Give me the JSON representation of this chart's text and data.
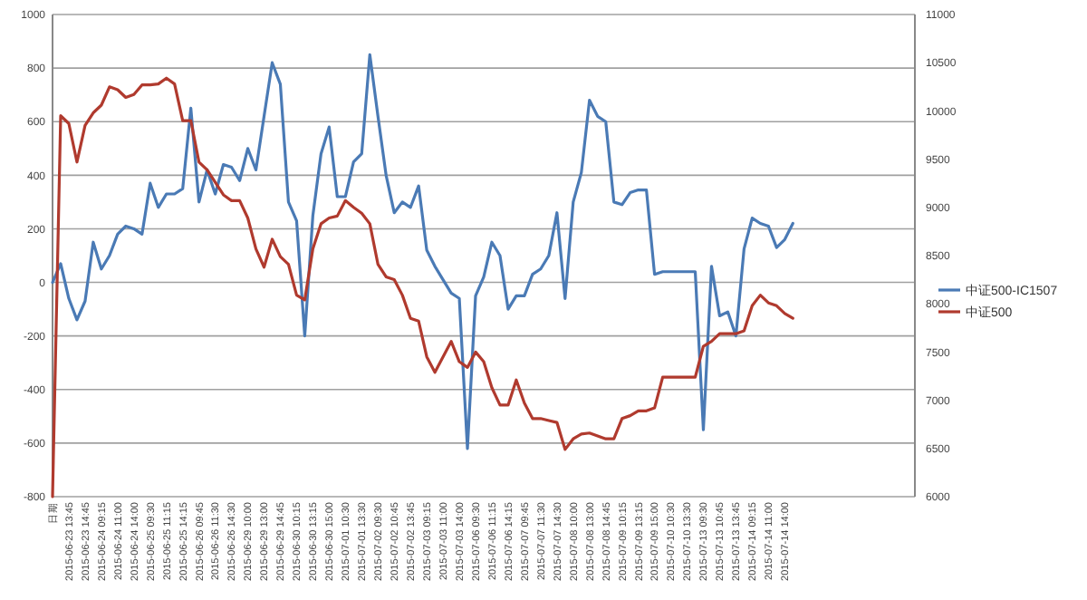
{
  "chart_data": {
    "type": "line",
    "categories": [
      "日期",
      null,
      "2015-06-23 13:45",
      null,
      "2015-06-23 14:45",
      null,
      "2015-06-24 09:15",
      null,
      "2015-06-24 11:00",
      null,
      "2015-06-24 14:00",
      null,
      "2015-06-25 09:30",
      null,
      "2015-06-25 11:15",
      null,
      "2015-06-25 14:15",
      null,
      "2015-06-26 09:45",
      null,
      "2015-06-26 11:30",
      null,
      "2015-06-26 14:30",
      null,
      "2015-06-29 10:00",
      null,
      "2015-06-29 13:00",
      null,
      "2015-06-29 14:45",
      null,
      "2015-06-30 10:15",
      null,
      "2015-06-30 13:15",
      null,
      "2015-06-30 15:00",
      null,
      "2015-07-01 10:30",
      null,
      "2015-07-01 13:30",
      null,
      "2015-07-02 09:30",
      null,
      "2015-07-02 10:45",
      null,
      "2015-07-02 13:45",
      null,
      "2015-07-03 09:15",
      null,
      "2015-07-03 11:00",
      null,
      "2015-07-03 14:00",
      null,
      "2015-07-06 09:30",
      null,
      "2015-07-06 11:15",
      null,
      "2015-07-06 14:15",
      null,
      "2015-07-07 09:45",
      null,
      "2015-07-07 11:30",
      null,
      "2015-07-07 14:30",
      null,
      "2015-07-08 10:00",
      null,
      "2015-07-08 13:00",
      null,
      "2015-07-08 14:45",
      null,
      "2015-07-09 10:15",
      null,
      "2015-07-09 13:15",
      null,
      "2015-07-09 15:00",
      null,
      "2015-07-10 10:30",
      null,
      "2015-07-10 13:30",
      null,
      "2015-07-13 09:30",
      null,
      "2015-07-13 10:45",
      null,
      "2015-07-13 13:45",
      null,
      "2015-07-14 09:15",
      null,
      "2015-07-14 11:00",
      null,
      "2015-07-14 14:00",
      null,
      null,
      null,
      null,
      null,
      null,
      null,
      null,
      null,
      null,
      null,
      null,
      null,
      null,
      null,
      null
    ],
    "series": [
      {
        "name": "中证500-IC1507",
        "color": "#4a7ab5",
        "values": [
          0,
          70,
          -60,
          -140,
          -70,
          150,
          50,
          100,
          180,
          210,
          200,
          180,
          370,
          280,
          330,
          330,
          350,
          650,
          300,
          420,
          330,
          440,
          430,
          380,
          500,
          420,
          620,
          820,
          740,
          300,
          230,
          -200,
          250,
          480,
          580,
          320,
          320,
          450,
          480,
          850,
          620,
          400,
          260,
          300,
          280,
          360,
          120,
          60,
          10,
          -40,
          -60,
          -620,
          -50,
          20,
          150,
          100,
          -100,
          -50,
          -50,
          30,
          50,
          100,
          260,
          -60,
          300,
          410,
          680,
          620,
          600,
          300,
          290,
          335,
          345,
          345,
          30,
          40,
          40,
          40,
          40,
          40,
          -550,
          60,
          -125,
          -110,
          -200,
          125,
          240,
          220,
          210,
          130,
          160,
          220,
          null,
          null,
          null,
          null,
          null,
          null,
          null,
          null,
          null,
          null,
          null,
          null,
          null,
          null,
          null
        ]
      },
      {
        "name": "中证500",
        "color": "#b03a2e",
        "axis": "y2",
        "values": [
          6000,
          9950,
          9870,
          9470,
          9850,
          9980,
          10060,
          10250,
          10220,
          10140,
          10170,
          10270,
          10270,
          10280,
          10340,
          10280,
          9900,
          9900,
          9470,
          9390,
          9260,
          9130,
          9070,
          9070,
          8890,
          8570,
          8380,
          8670,
          8490,
          8410,
          8090,
          8040,
          8570,
          8830,
          8890,
          8910,
          9070,
          9000,
          8940,
          8830,
          8410,
          8280,
          8250,
          8090,
          7850,
          7820,
          7450,
          7290,
          7450,
          7610,
          7400,
          7340,
          7500,
          7400,
          7130,
          6950,
          6950,
          7210,
          6970,
          6810,
          6810,
          6790,
          6770,
          6490,
          6600,
          6650,
          6660,
          6630,
          6600,
          6600,
          6810,
          6840,
          6890,
          6890,
          6920,
          7240,
          7240,
          7240,
          7240,
          7240,
          7560,
          7610,
          7690,
          7690,
          7690,
          7720,
          7980,
          8090,
          8010,
          7980,
          7900,
          7850,
          null,
          null,
          null,
          null,
          null,
          null,
          null,
          null,
          null,
          null,
          null,
          null,
          null,
          null,
          null
        ]
      }
    ],
    "ylim": [
      -800,
      1000
    ],
    "yticks": [
      -800,
      -600,
      -400,
      -200,
      0,
      200,
      400,
      600,
      800,
      1000
    ],
    "y2lim": [
      6000,
      11000
    ],
    "y2ticks": [
      6000,
      6500,
      7000,
      7500,
      8000,
      8500,
      9000,
      9500,
      10000,
      10500,
      11000
    ],
    "grid": "y",
    "legend": "right",
    "marker": "none",
    "line_style": "solid"
  }
}
